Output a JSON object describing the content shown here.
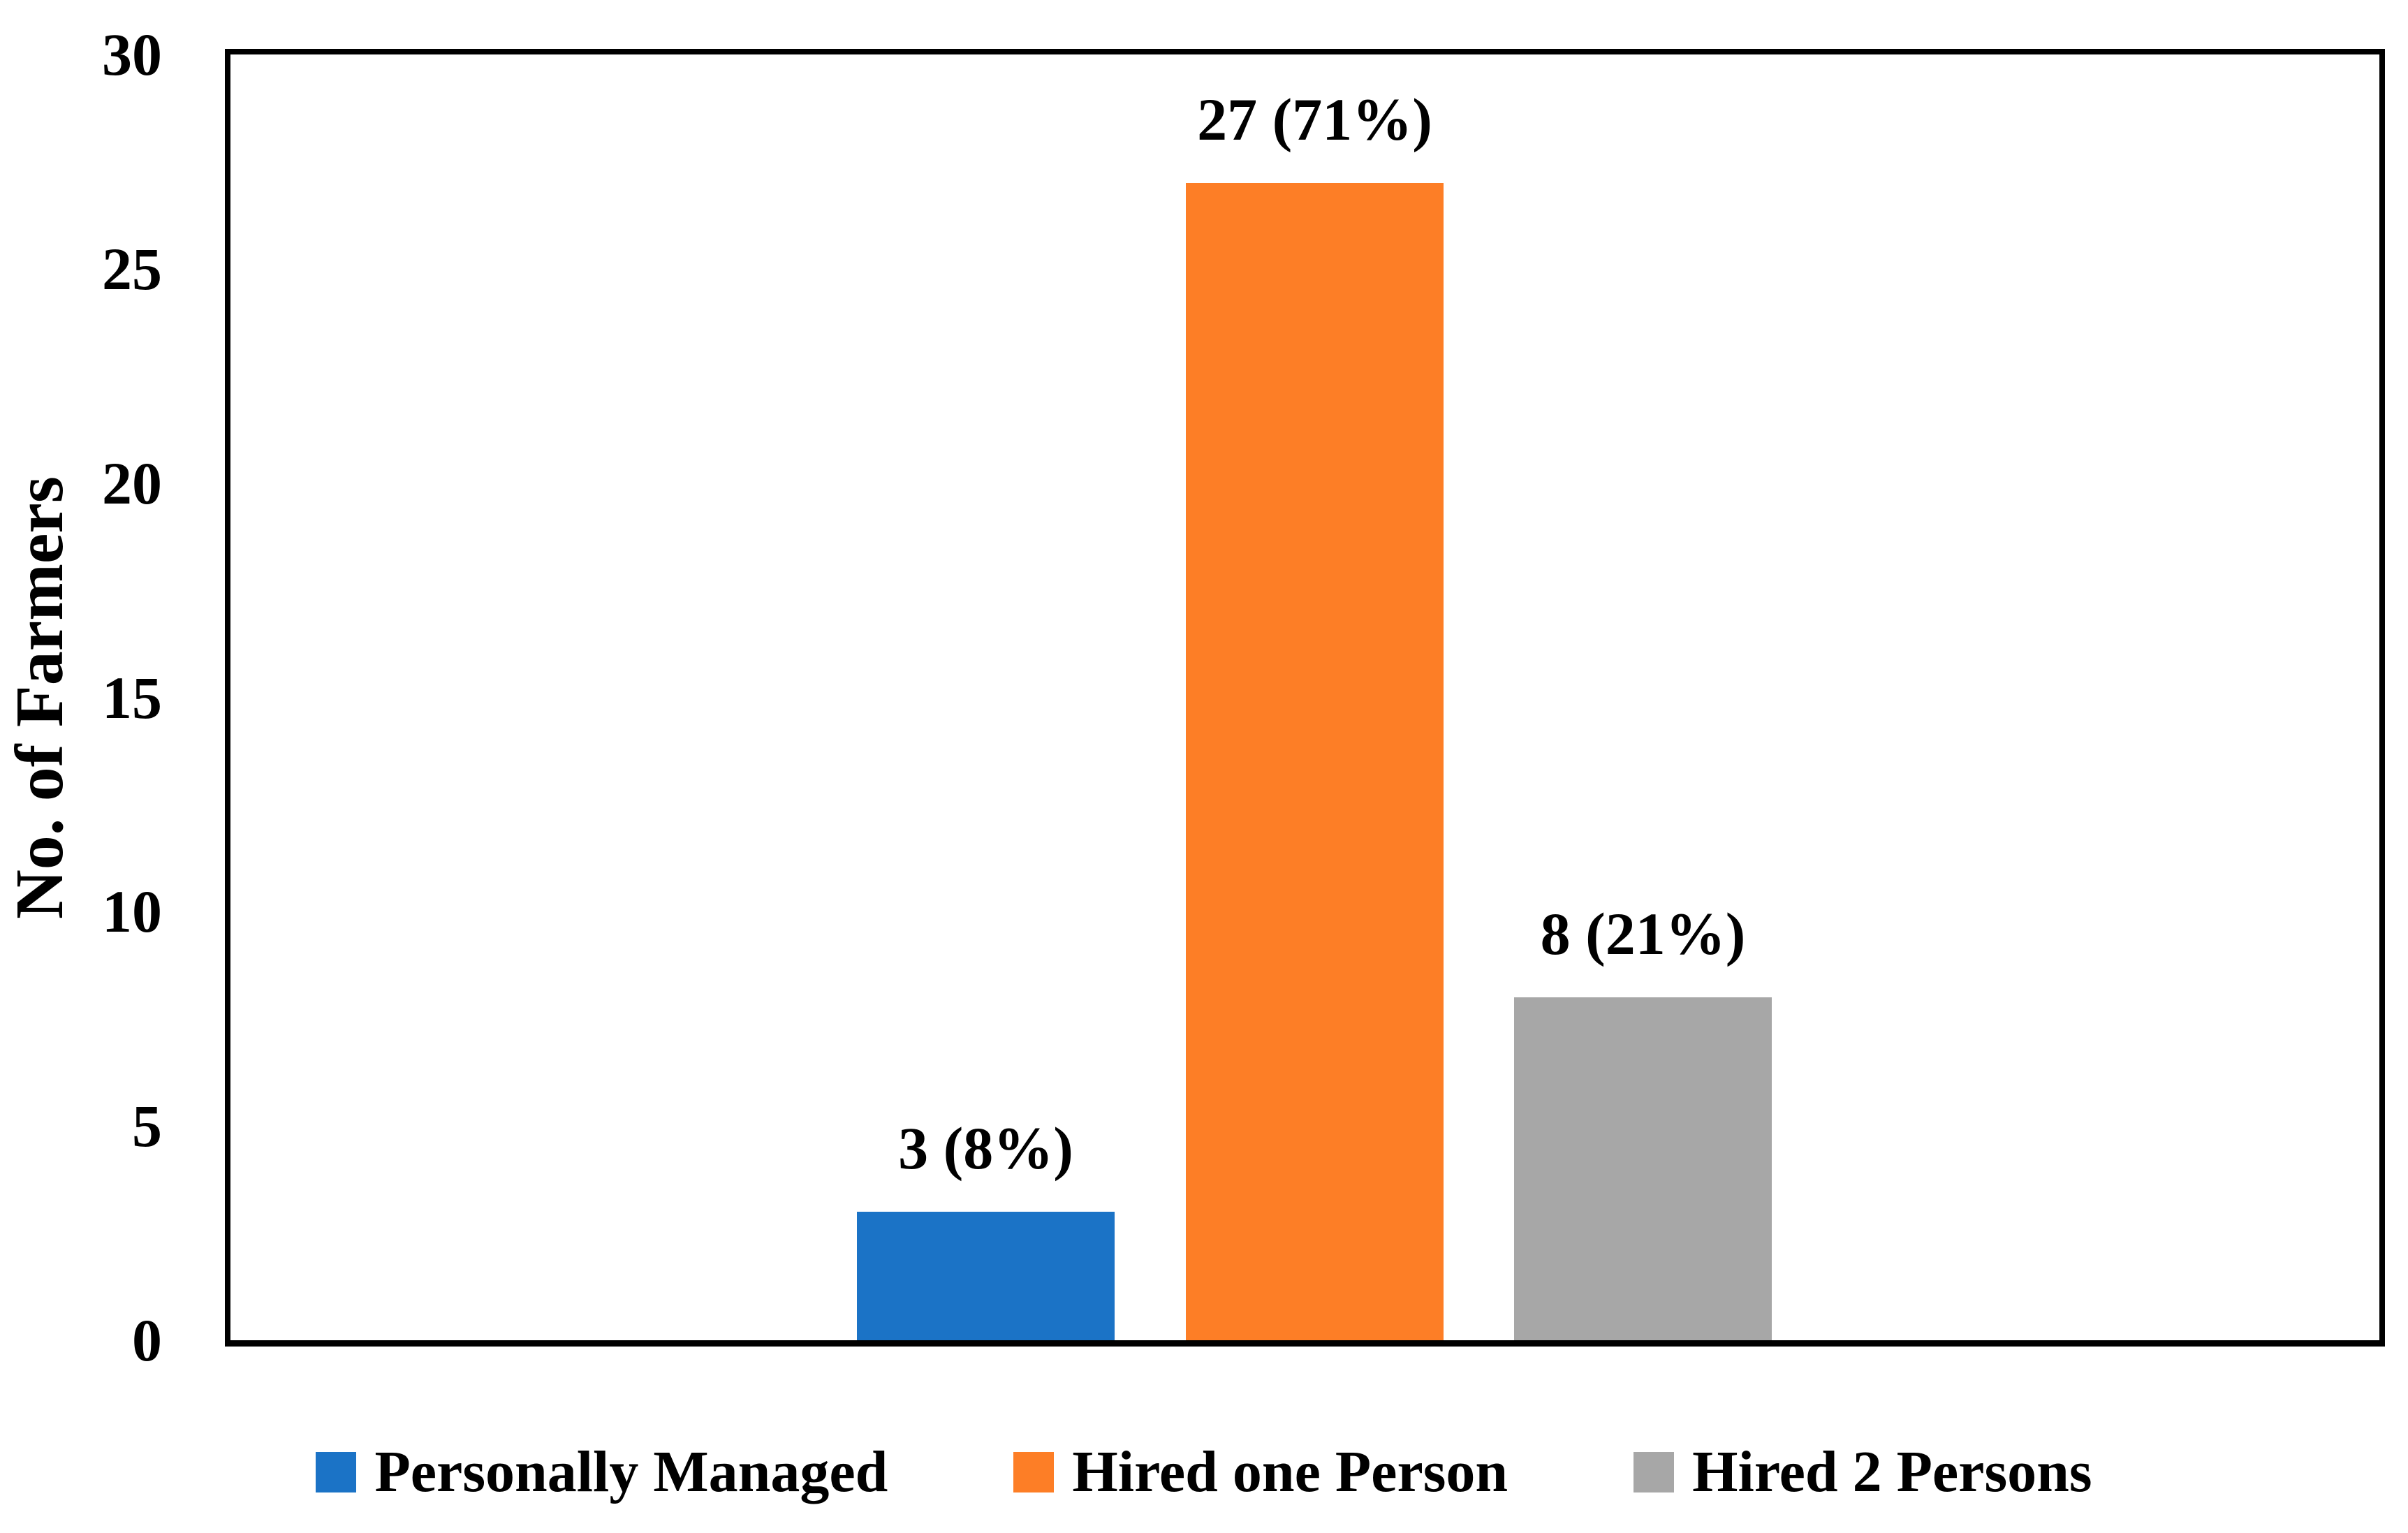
{
  "chart_data": {
    "type": "bar",
    "title": "",
    "xlabel": "",
    "ylabel": "No. of Farmers",
    "ylim": [
      0,
      30
    ],
    "y_ticks": [
      0,
      5,
      10,
      15,
      20,
      25,
      30
    ],
    "grid": false,
    "legend_position": "bottom",
    "plot_border_color": "#000000",
    "background_color": "#ffffff",
    "categories": [
      "Personally Managed",
      "Hired one Person",
      "Hired 2 Persons"
    ],
    "series": [
      {
        "name": "Personally Managed",
        "value": 3,
        "percent": "8%",
        "data_label": "3 (8%)",
        "color": "#1B73C6"
      },
      {
        "name": "Hired one Person",
        "value": 27,
        "percent": "71%",
        "data_label": "27 (71%)",
        "color": "#FD7E26"
      },
      {
        "name": "Hired 2 Persons",
        "value": 8,
        "percent": "21%",
        "data_label": "8 (21%)",
        "color": "#A7A7A7"
      }
    ]
  }
}
